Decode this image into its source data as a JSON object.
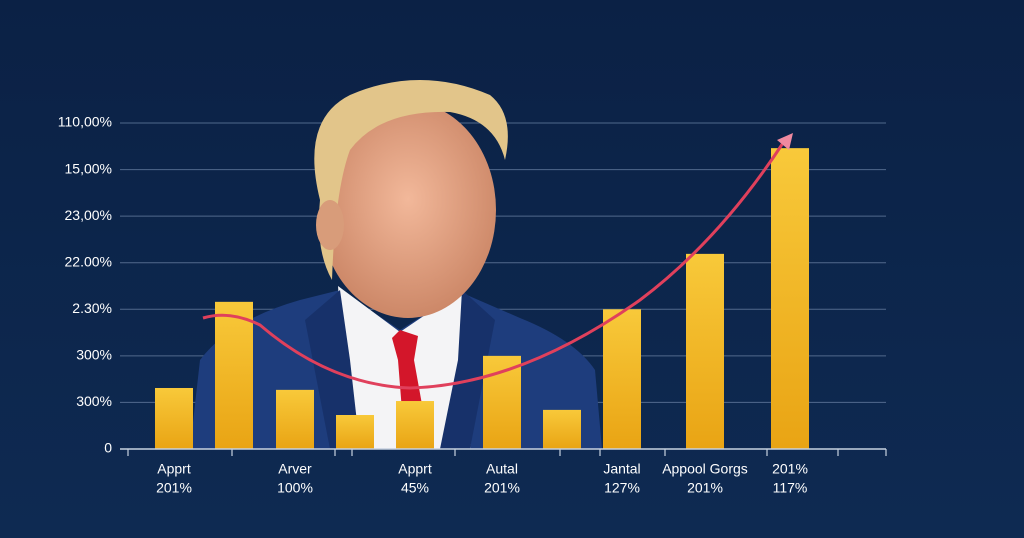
{
  "chart_data": {
    "type": "bar",
    "categories": [
      "Apprt",
      null,
      "Arver",
      null,
      "Apprt",
      "Autal",
      null,
      "Jantal",
      "Appool Gorgs",
      "201%"
    ],
    "category_sublabels": [
      "201%",
      null,
      "100%",
      null,
      "45%",
      "201%",
      null,
      "127%",
      "201%",
      "117%"
    ],
    "values": [
      1.31,
      3.16,
      1.27,
      0.73,
      1.03,
      2.0,
      0.84,
      3.0,
      4.19,
      6.46
    ],
    "color": "#f2b71f",
    "ylim": [
      0,
      7
    ],
    "yticks": [
      {
        "value": 0,
        "label": "0"
      },
      {
        "value": 1,
        "label": "300%"
      },
      {
        "value": 2,
        "label": "300%"
      },
      {
        "value": 3,
        "label": "2.30%"
      },
      {
        "value": 4,
        "label": "22.00%"
      },
      {
        "value": 5,
        "label": "23,00%"
      },
      {
        "value": 6,
        "label": "15,00%"
      },
      {
        "value": 7,
        "label": "110,00%"
      }
    ],
    "grid": true
  }
}
